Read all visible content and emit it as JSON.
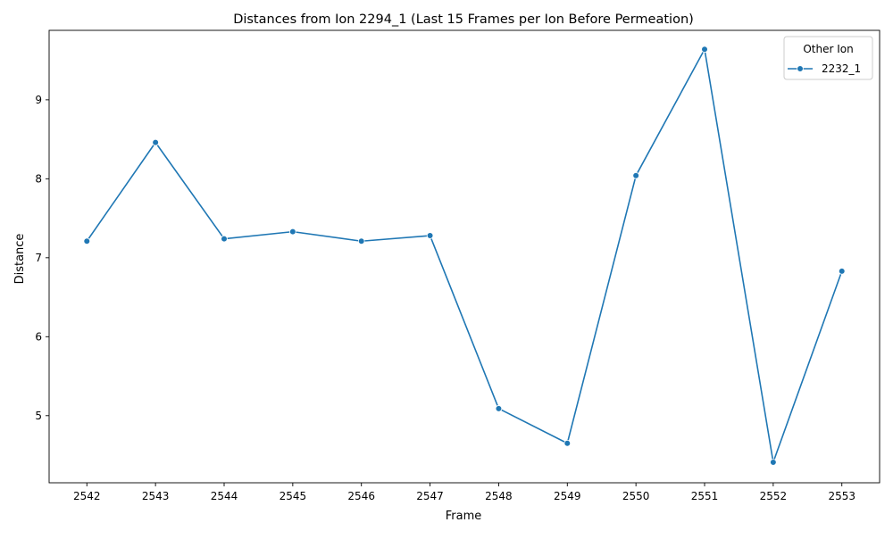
{
  "chart_data": {
    "type": "line",
    "title": "Distances from Ion 2294_1 (Last 15 Frames per Ion Before Permeation)",
    "xlabel": "Frame",
    "ylabel": "Distance",
    "x": [
      2542,
      2543,
      2544,
      2545,
      2546,
      2547,
      2548,
      2549,
      2550,
      2551,
      2552,
      2553
    ],
    "xlim": [
      2541.45,
      2553.55
    ],
    "ylim": [
      4.15,
      9.88
    ],
    "yticks": [
      5,
      6,
      7,
      8,
      9
    ],
    "grid": false,
    "legend": {
      "title": "Other Ion",
      "placement": "top-right"
    },
    "series": [
      {
        "name": "2232_1",
        "color": "#1f77b4",
        "marker": "circle",
        "values": [
          7.21,
          8.46,
          7.24,
          7.33,
          7.21,
          7.28,
          5.09,
          4.65,
          8.04,
          9.64,
          4.41,
          6.83
        ]
      }
    ]
  }
}
